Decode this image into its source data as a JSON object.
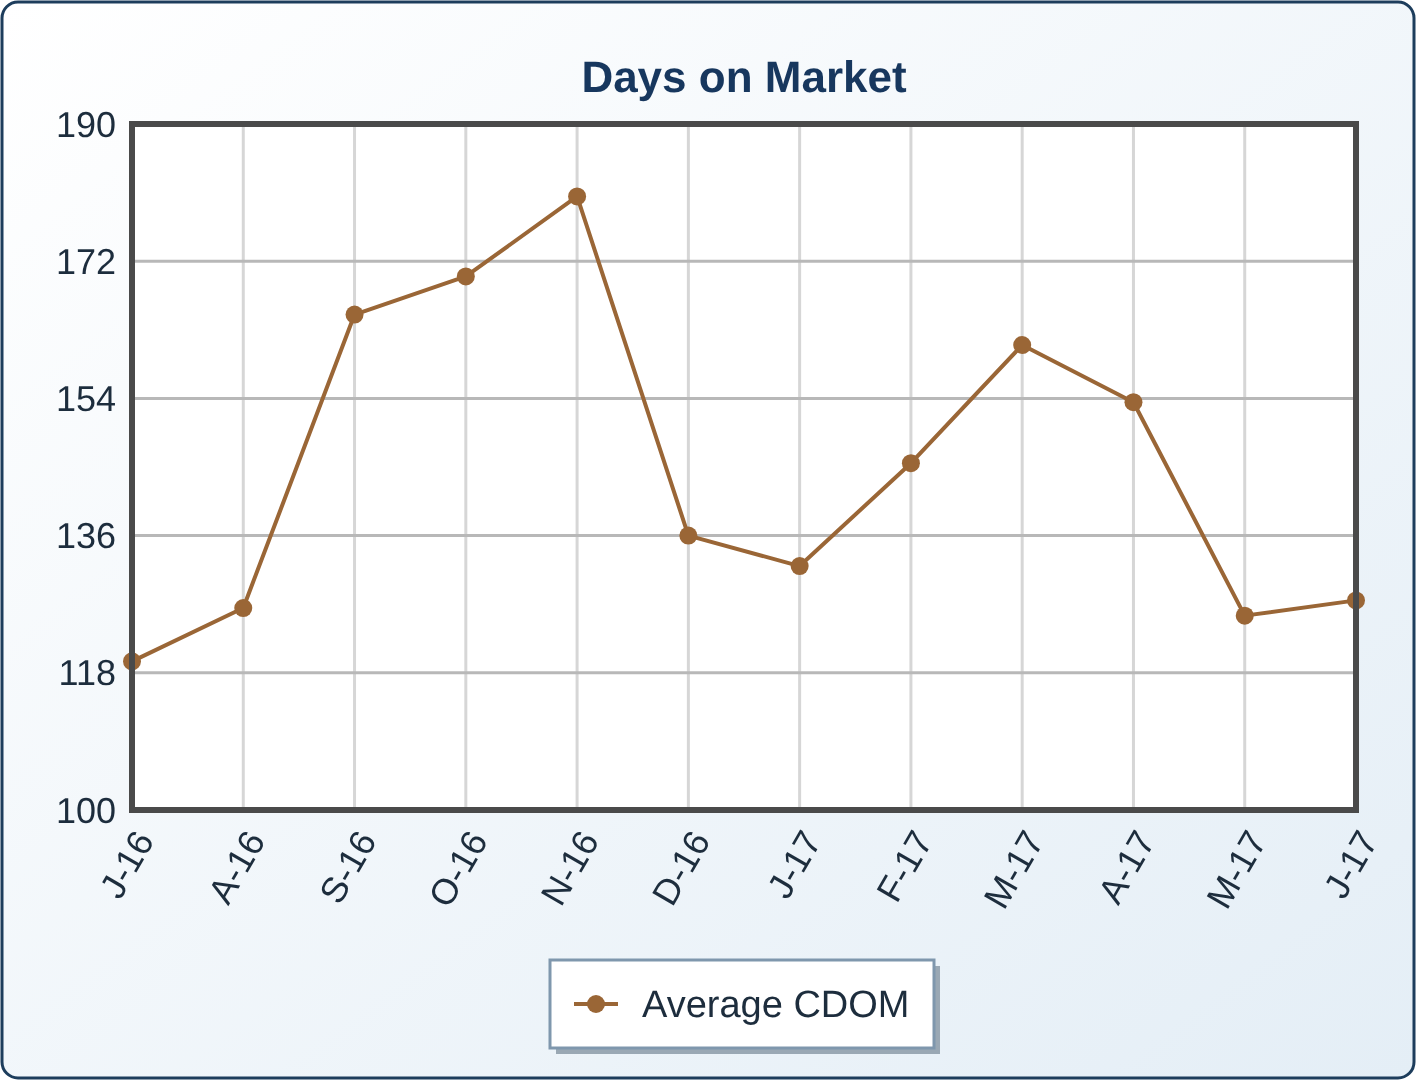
{
  "chart_data": {
    "type": "line",
    "title": "Days on Market",
    "categories": [
      "J-16",
      "A-16",
      "S-16",
      "O-16",
      "N-16",
      "D-16",
      "J-17",
      "F-17",
      "M-17",
      "A-17",
      "M-17",
      "J-17"
    ],
    "series": [
      {
        "name": "Average CDOM",
        "color": "#9a6636",
        "values": [
          119.5,
          126.5,
          165,
          170,
          180.5,
          136,
          132,
          145.5,
          161,
          153.5,
          125.5,
          127.5
        ]
      }
    ],
    "ylim": [
      100,
      190
    ],
    "yticks": [
      100,
      118,
      136,
      154,
      172,
      190
    ],
    "grid": true,
    "legend": "bottom",
    "marker": "circle",
    "line_style": "solid"
  }
}
